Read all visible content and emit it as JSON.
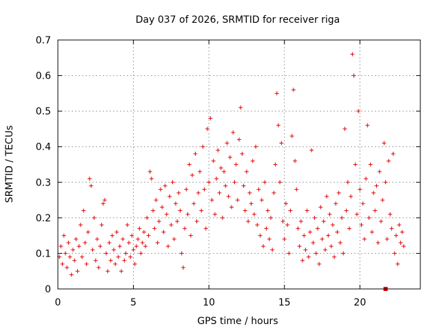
{
  "chart_data": {
    "type": "scatter",
    "title": "Day 037 of 2026, SRMTID for receiver riga",
    "xlabel": "GPS time / hours",
    "ylabel": "SRMTID / TECUs",
    "xlim": [
      0,
      24
    ],
    "ylim": [
      0,
      0.7
    ],
    "xticks": [
      0,
      5,
      10,
      15,
      20
    ],
    "yticks": [
      0,
      0.1,
      0.2,
      0.3,
      0.4,
      0.5,
      0.6,
      0.7
    ],
    "ytick_labels": [
      "0",
      "0.1",
      "0.2",
      "0.3",
      "0.4",
      "0.5",
      "0.6",
      "0.7"
    ],
    "grid": true,
    "marker": "plus",
    "color": "#e00000",
    "marker_square": [
      21.7,
      0.0
    ],
    "series": [
      {
        "name": "SRMTID",
        "points": [
          [
            0.1,
            0.09
          ],
          [
            0.2,
            0.12
          ],
          [
            0.3,
            0.07
          ],
          [
            0.4,
            0.15
          ],
          [
            0.5,
            0.1
          ],
          [
            0.6,
            0.06
          ],
          [
            0.7,
            0.13
          ],
          [
            0.8,
            0.09
          ],
          [
            0.9,
            0.04
          ],
          [
            1.0,
            0.11
          ],
          [
            1.1,
            0.08
          ],
          [
            1.2,
            0.14
          ],
          [
            1.3,
            0.05
          ],
          [
            1.4,
            0.12
          ],
          [
            1.5,
            0.18
          ],
          [
            1.6,
            0.09
          ],
          [
            1.7,
            0.22
          ],
          [
            1.8,
            0.13
          ],
          [
            1.9,
            0.07
          ],
          [
            2.0,
            0.16
          ],
          [
            2.1,
            0.31
          ],
          [
            2.2,
            0.29
          ],
          [
            2.3,
            0.11
          ],
          [
            2.4,
            0.2
          ],
          [
            2.5,
            0.08
          ],
          [
            2.6,
            0.14
          ],
          [
            2.7,
            0.06
          ],
          [
            2.8,
            0.12
          ],
          [
            2.9,
            0.18
          ],
          [
            3.0,
            0.24
          ],
          [
            3.1,
            0.25
          ],
          [
            3.2,
            0.1
          ],
          [
            3.3,
            0.05
          ],
          [
            3.4,
            0.13
          ],
          [
            3.5,
            0.08
          ],
          [
            3.6,
            0.15
          ],
          [
            3.7,
            0.11
          ],
          [
            3.8,
            0.07
          ],
          [
            3.9,
            0.16
          ],
          [
            4.0,
            0.09
          ],
          [
            4.1,
            0.12
          ],
          [
            4.2,
            0.05
          ],
          [
            4.3,
            0.14
          ],
          [
            4.4,
            0.08
          ],
          [
            4.5,
            0.1
          ],
          [
            4.6,
            0.18
          ],
          [
            4.7,
            0.13
          ],
          [
            4.8,
            0.09
          ],
          [
            4.9,
            0.15
          ],
          [
            5.0,
            0.11
          ],
          [
            5.1,
            0.07
          ],
          [
            5.2,
            0.12
          ],
          [
            5.3,
            0.14
          ],
          [
            5.4,
            0.17
          ],
          [
            5.5,
            0.1
          ],
          [
            5.6,
            0.13
          ],
          [
            5.7,
            0.16
          ],
          [
            5.8,
            0.12
          ],
          [
            5.9,
            0.2
          ],
          [
            6.0,
            0.15
          ],
          [
            6.1,
            0.33
          ],
          [
            6.2,
            0.31
          ],
          [
            6.3,
            0.22
          ],
          [
            6.4,
            0.17
          ],
          [
            6.5,
            0.25
          ],
          [
            6.6,
            0.13
          ],
          [
            6.7,
            0.19
          ],
          [
            6.8,
            0.28
          ],
          [
            6.9,
            0.23
          ],
          [
            7.0,
            0.16
          ],
          [
            7.1,
            0.29
          ],
          [
            7.2,
            0.21
          ],
          [
            7.3,
            0.12
          ],
          [
            7.4,
            0.26
          ],
          [
            7.5,
            0.18
          ],
          [
            7.6,
            0.3
          ],
          [
            7.7,
            0.14
          ],
          [
            7.8,
            0.24
          ],
          [
            7.9,
            0.19
          ],
          [
            8.0,
            0.27
          ],
          [
            8.1,
            0.22
          ],
          [
            8.2,
            0.1
          ],
          [
            8.3,
            0.06
          ],
          [
            8.4,
            0.17
          ],
          [
            8.5,
            0.28
          ],
          [
            8.6,
            0.21
          ],
          [
            8.7,
            0.35
          ],
          [
            8.8,
            0.15
          ],
          [
            8.9,
            0.32
          ],
          [
            9.0,
            0.24
          ],
          [
            9.1,
            0.38
          ],
          [
            9.2,
            0.19
          ],
          [
            9.3,
            0.27
          ],
          [
            9.4,
            0.33
          ],
          [
            9.5,
            0.22
          ],
          [
            9.6,
            0.4
          ],
          [
            9.7,
            0.28
          ],
          [
            9.8,
            0.17
          ],
          [
            9.9,
            0.45
          ],
          [
            10.0,
            0.3
          ],
          [
            10.1,
            0.48
          ],
          [
            10.2,
            0.25
          ],
          [
            10.3,
            0.36
          ],
          [
            10.4,
            0.21
          ],
          [
            10.5,
            0.31
          ],
          [
            10.6,
            0.39
          ],
          [
            10.7,
            0.27
          ],
          [
            10.8,
            0.34
          ],
          [
            10.9,
            0.2
          ],
          [
            11.0,
            0.33
          ],
          [
            11.1,
            0.29
          ],
          [
            11.2,
            0.41
          ],
          [
            11.3,
            0.26
          ],
          [
            11.4,
            0.37
          ],
          [
            11.5,
            0.23
          ],
          [
            11.6,
            0.44
          ],
          [
            11.7,
            0.3
          ],
          [
            11.8,
            0.35
          ],
          [
            11.9,
            0.25
          ],
          [
            12.0,
            0.42
          ],
          [
            12.1,
            0.51
          ],
          [
            12.2,
            0.38
          ],
          [
            12.3,
            0.29
          ],
          [
            12.4,
            0.22
          ],
          [
            12.5,
            0.33
          ],
          [
            12.6,
            0.19
          ],
          [
            12.7,
            0.27
          ],
          [
            12.8,
            0.24
          ],
          [
            12.9,
            0.36
          ],
          [
            13.0,
            0.21
          ],
          [
            13.1,
            0.4
          ],
          [
            13.2,
            0.18
          ],
          [
            13.3,
            0.28
          ],
          [
            13.4,
            0.15
          ],
          [
            13.5,
            0.25
          ],
          [
            13.6,
            0.12
          ],
          [
            13.7,
            0.3
          ],
          [
            13.8,
            0.17
          ],
          [
            13.9,
            0.22
          ],
          [
            14.0,
            0.14
          ],
          [
            14.1,
            0.2
          ],
          [
            14.2,
            0.11
          ],
          [
            14.3,
            0.27
          ],
          [
            14.4,
            0.35
          ],
          [
            14.5,
            0.55
          ],
          [
            14.6,
            0.46
          ],
          [
            14.7,
            0.3
          ],
          [
            14.8,
            0.41
          ],
          [
            14.9,
            0.19
          ],
          [
            15.0,
            0.14
          ],
          [
            15.1,
            0.24
          ],
          [
            15.2,
            0.18
          ],
          [
            15.3,
            0.1
          ],
          [
            15.4,
            0.22
          ],
          [
            15.5,
            0.43
          ],
          [
            15.6,
            0.56
          ],
          [
            15.7,
            0.36
          ],
          [
            15.8,
            0.28
          ],
          [
            15.9,
            0.17
          ],
          [
            16.0,
            0.12
          ],
          [
            16.1,
            0.19
          ],
          [
            16.2,
            0.08
          ],
          [
            16.3,
            0.15
          ],
          [
            16.4,
            0.11
          ],
          [
            16.5,
            0.22
          ],
          [
            16.6,
            0.09
          ],
          [
            16.7,
            0.16
          ],
          [
            16.8,
            0.39
          ],
          [
            16.9,
            0.13
          ],
          [
            17.0,
            0.2
          ],
          [
            17.1,
            0.1
          ],
          [
            17.2,
            0.17
          ],
          [
            17.3,
            0.07
          ],
          [
            17.4,
            0.23
          ],
          [
            17.5,
            0.14
          ],
          [
            17.6,
            0.19
          ],
          [
            17.7,
            0.11
          ],
          [
            17.8,
            0.26
          ],
          [
            17.9,
            0.15
          ],
          [
            18.0,
            0.21
          ],
          [
            18.1,
            0.12
          ],
          [
            18.2,
            0.18
          ],
          [
            18.3,
            0.09
          ],
          [
            18.4,
            0.24
          ],
          [
            18.5,
            0.16
          ],
          [
            18.6,
            0.27
          ],
          [
            18.7,
            0.13
          ],
          [
            18.8,
            0.2
          ],
          [
            18.9,
            0.1
          ],
          [
            19.0,
            0.45
          ],
          [
            19.1,
            0.22
          ],
          [
            19.2,
            0.3
          ],
          [
            19.3,
            0.17
          ],
          [
            19.4,
            0.26
          ],
          [
            19.5,
            0.66
          ],
          [
            19.6,
            0.6
          ],
          [
            19.7,
            0.35
          ],
          [
            19.8,
            0.21
          ],
          [
            19.9,
            0.5
          ],
          [
            20.0,
            0.28
          ],
          [
            20.1,
            0.18
          ],
          [
            20.2,
            0.24
          ],
          [
            20.3,
            0.14
          ],
          [
            20.4,
            0.31
          ],
          [
            20.5,
            0.46
          ],
          [
            20.6,
            0.2
          ],
          [
            20.7,
            0.35
          ],
          [
            20.8,
            0.16
          ],
          [
            20.9,
            0.27
          ],
          [
            21.0,
            0.22
          ],
          [
            21.1,
            0.29
          ],
          [
            21.2,
            0.13
          ],
          [
            21.3,
            0.33
          ],
          [
            21.4,
            0.19
          ],
          [
            21.5,
            0.25
          ],
          [
            21.6,
            0.41
          ],
          [
            21.7,
            0.3
          ],
          [
            21.8,
            0.14
          ],
          [
            21.9,
            0.36
          ],
          [
            22.0,
            0.21
          ],
          [
            22.1,
            0.17
          ],
          [
            22.2,
            0.38
          ],
          [
            22.3,
            0.1
          ],
          [
            22.4,
            0.15
          ],
          [
            22.5,
            0.07
          ],
          [
            22.6,
            0.18
          ],
          [
            22.7,
            0.13
          ],
          [
            22.8,
            0.16
          ],
          [
            22.9,
            0.12
          ]
        ]
      }
    ]
  }
}
